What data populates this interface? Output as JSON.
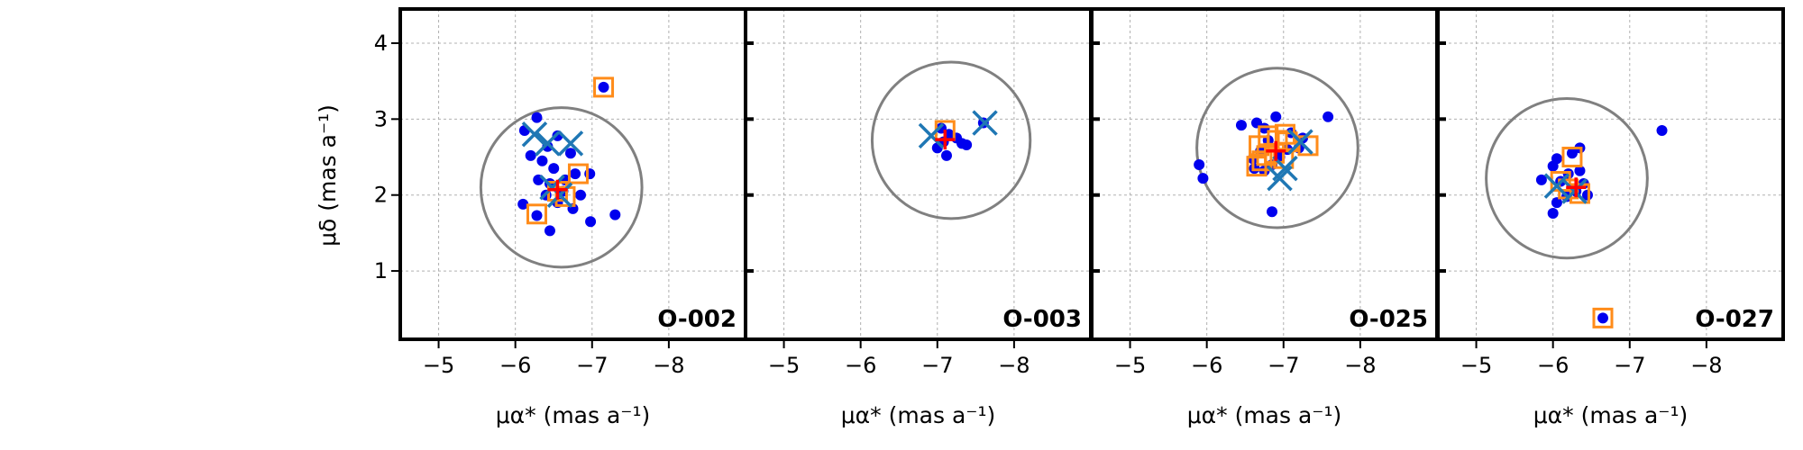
{
  "figure": {
    "ylabel": "μδ (mas a⁻¹)",
    "xlabel": "μα* (mas a⁻¹)"
  },
  "colors": {
    "member": "#0000ee",
    "square": "#ff8c1a",
    "cross": "#1f77b4",
    "centre": "#ff0000",
    "circle": "#808080"
  },
  "chart_data": [
    {
      "type": "scatter",
      "label": "O-002",
      "xlabel": "μα* (mas a⁻¹)",
      "ylabel": "μδ (mas a⁻¹)",
      "xlim": [
        -4.5,
        -9.0
      ],
      "ylim": [
        0.1,
        4.45
      ],
      "xticks": [
        -5,
        -6,
        -7,
        -8
      ],
      "yticks": [
        1,
        2,
        3,
        4
      ],
      "grid": true,
      "circle": {
        "cx": -6.6,
        "cy": 2.1,
        "r": 1.05
      },
      "centre": {
        "x": -6.55,
        "y": 2.07
      },
      "points": [
        [
          -7.15,
          3.42
        ],
        [
          -6.28,
          3.02
        ],
        [
          -6.12,
          2.85
        ],
        [
          -6.55,
          2.78
        ],
        [
          -6.42,
          2.64
        ],
        [
          -6.2,
          2.52
        ],
        [
          -6.72,
          2.55
        ],
        [
          -6.35,
          2.45
        ],
        [
          -6.5,
          2.35
        ],
        [
          -6.78,
          2.28
        ],
        [
          -6.97,
          2.28
        ],
        [
          -6.3,
          2.2
        ],
        [
          -6.45,
          2.15
        ],
        [
          -6.62,
          2.05
        ],
        [
          -6.4,
          2.0
        ],
        [
          -6.85,
          2.0
        ],
        [
          -6.1,
          1.88
        ],
        [
          -6.55,
          1.9
        ],
        [
          -6.75,
          1.82
        ],
        [
          -6.28,
          1.73
        ],
        [
          -6.98,
          1.65
        ],
        [
          -7.3,
          1.74
        ],
        [
          -6.45,
          1.53
        ],
        [
          -6.65,
          2.2
        ]
      ],
      "squares": [
        [
          -7.15,
          3.42
        ],
        [
          -6.82,
          2.28
        ],
        [
          -6.55,
          2.05
        ],
        [
          -6.65,
          1.98
        ],
        [
          -6.28,
          1.75
        ]
      ],
      "crosses": [
        [
          -6.25,
          2.8
        ],
        [
          -6.42,
          2.68
        ],
        [
          -6.72,
          2.68
        ],
        [
          -6.48,
          2.1
        ],
        [
          -6.58,
          2.0
        ]
      ]
    },
    {
      "type": "scatter",
      "label": "O-003",
      "xlabel": "μα* (mas a⁻¹)",
      "ylabel": "",
      "xlim": [
        -4.5,
        -9.0
      ],
      "ylim": [
        0.1,
        4.45
      ],
      "xticks": [
        -5,
        -6,
        -7,
        -8
      ],
      "yticks": [
        1,
        2,
        3,
        4
      ],
      "grid": true,
      "circle": {
        "cx": -7.18,
        "cy": 2.72,
        "r": 1.03
      },
      "centre": {
        "x": -7.1,
        "y": 2.73
      },
      "points": [
        [
          -7.05,
          2.88
        ],
        [
          -7.15,
          2.8
        ],
        [
          -7.25,
          2.75
        ],
        [
          -7.32,
          2.68
        ],
        [
          -7.38,
          2.66
        ],
        [
          -7.08,
          2.7
        ],
        [
          -7.12,
          2.52
        ],
        [
          -7.6,
          2.95
        ],
        [
          -7.0,
          2.62
        ]
      ],
      "squares": [
        [
          -7.1,
          2.85
        ]
      ],
      "crosses": [
        [
          -6.92,
          2.78
        ],
        [
          -7.62,
          2.95
        ]
      ]
    },
    {
      "type": "scatter",
      "label": "O-025",
      "xlabel": "μα* (mas a⁻¹)",
      "ylabel": "",
      "xlim": [
        -4.5,
        -9.0
      ],
      "ylim": [
        0.1,
        4.45
      ],
      "xticks": [
        -5,
        -6,
        -7,
        -8
      ],
      "yticks": [
        1,
        2,
        3,
        4
      ],
      "grid": true,
      "circle": {
        "cx": -6.92,
        "cy": 2.62,
        "r": 1.05
      },
      "centre": {
        "x": -6.9,
        "y": 2.58
      },
      "points": [
        [
          -6.9,
          3.03
        ],
        [
          -7.58,
          3.03
        ],
        [
          -6.65,
          2.95
        ],
        [
          -6.75,
          2.88
        ],
        [
          -6.45,
          2.92
        ],
        [
          -7.1,
          2.82
        ],
        [
          -7.25,
          2.75
        ],
        [
          -6.8,
          2.72
        ],
        [
          -7.2,
          2.62
        ],
        [
          -6.7,
          2.58
        ],
        [
          -6.6,
          2.48
        ],
        [
          -6.95,
          2.5
        ],
        [
          -6.85,
          2.4
        ],
        [
          -6.75,
          2.32
        ],
        [
          -6.62,
          2.35
        ],
        [
          -5.9,
          2.4
        ],
        [
          -5.95,
          2.22
        ],
        [
          -6.85,
          1.78
        ],
        [
          -7.05,
          2.6
        ]
      ],
      "squares": [
        [
          -6.68,
          2.65
        ],
        [
          -6.8,
          2.78
        ],
        [
          -6.92,
          2.72
        ],
        [
          -7.05,
          2.7
        ],
        [
          -6.72,
          2.45
        ],
        [
          -6.88,
          2.55
        ],
        [
          -7.0,
          2.48
        ],
        [
          -6.65,
          2.38
        ],
        [
          -7.32,
          2.65
        ],
        [
          -7.02,
          2.8
        ],
        [
          -6.78,
          2.52
        ]
      ],
      "crosses": [
        [
          -7.02,
          2.35
        ],
        [
          -6.95,
          2.22
        ],
        [
          -7.22,
          2.7
        ]
      ]
    },
    {
      "type": "scatter",
      "label": "O-027",
      "xlabel": "μα* (mas a⁻¹)",
      "ylabel": "",
      "xlim": [
        -4.5,
        -9.0
      ],
      "ylim": [
        0.1,
        4.45
      ],
      "xticks": [
        -5,
        -6,
        -7,
        -8
      ],
      "yticks": [
        1,
        2,
        3,
        4
      ],
      "grid": true,
      "circle": {
        "cx": -6.18,
        "cy": 2.22,
        "r": 1.05
      },
      "centre": {
        "x": -6.3,
        "y": 2.1
      },
      "points": [
        [
          -7.42,
          2.85
        ],
        [
          -6.35,
          2.62
        ],
        [
          -6.25,
          2.55
        ],
        [
          -6.05,
          2.48
        ],
        [
          -6.0,
          2.38
        ],
        [
          -6.2,
          2.28
        ],
        [
          -5.85,
          2.2
        ],
        [
          -6.1,
          2.18
        ],
        [
          -6.4,
          2.15
        ],
        [
          -6.3,
          2.05
        ],
        [
          -6.45,
          2.0
        ],
        [
          -6.18,
          1.98
        ],
        [
          -6.05,
          1.9
        ],
        [
          -6.0,
          1.76
        ],
        [
          -6.65,
          0.38
        ],
        [
          -6.35,
          2.32
        ]
      ],
      "squares": [
        [
          -6.25,
          2.5
        ],
        [
          -6.1,
          2.18
        ],
        [
          -6.2,
          2.08
        ],
        [
          -6.35,
          2.02
        ],
        [
          -6.65,
          0.38
        ]
      ],
      "crosses": [
        [
          -6.05,
          2.12
        ],
        [
          -6.28,
          2.05
        ]
      ]
    }
  ]
}
